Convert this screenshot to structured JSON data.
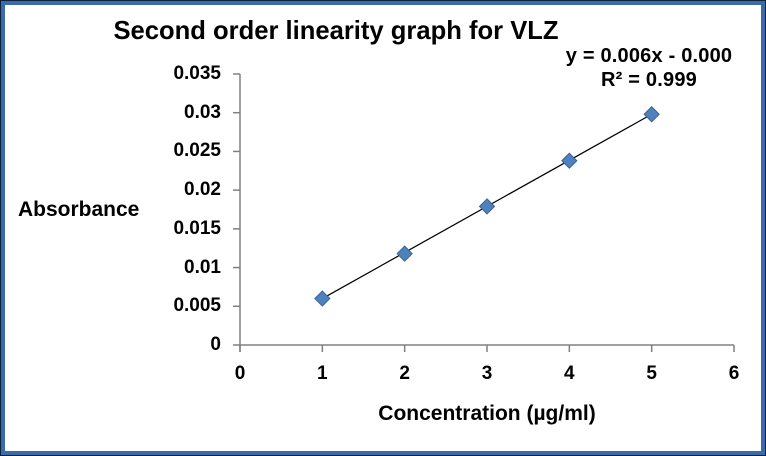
{
  "frame": {
    "outer_border_color": "#10213F",
    "inner_border_color": "#3A6CA8",
    "background": "#FFFFFF"
  },
  "chart_data": {
    "type": "scatter",
    "title": "Second order linearity graph for VLZ",
    "xlabel": "Concentration (µg/ml)",
    "ylabel": "Absorbance",
    "x": [
      1,
      2,
      3,
      4,
      5
    ],
    "y": [
      0.006,
      0.0118,
      0.0179,
      0.0238,
      0.0298
    ],
    "xlim": [
      0,
      6
    ],
    "ylim": [
      0,
      0.035
    ],
    "xticks": [
      0,
      1,
      2,
      3,
      4,
      5,
      6
    ],
    "yticks": [
      0,
      0.005,
      0.01,
      0.015,
      0.02,
      0.025,
      0.03,
      0.035
    ],
    "ytick_labels": [
      "0",
      "0.005",
      "0.01",
      "0.015",
      "0.02",
      "0.025",
      "0.03",
      "0.035"
    ],
    "equation": "y = 0.006x - 0.000",
    "r_squared": "R² = 0.999",
    "trendline": {
      "x_start": 1,
      "y_start": 0.006,
      "x_end": 5,
      "y_end": 0.0298,
      "color": "#000000"
    },
    "marker": {
      "shape": "diamond",
      "fill": "#4F81BD",
      "stroke": "#3A6494",
      "size": 15
    },
    "axis_color": "#808080",
    "grid": false,
    "legend": false
  }
}
